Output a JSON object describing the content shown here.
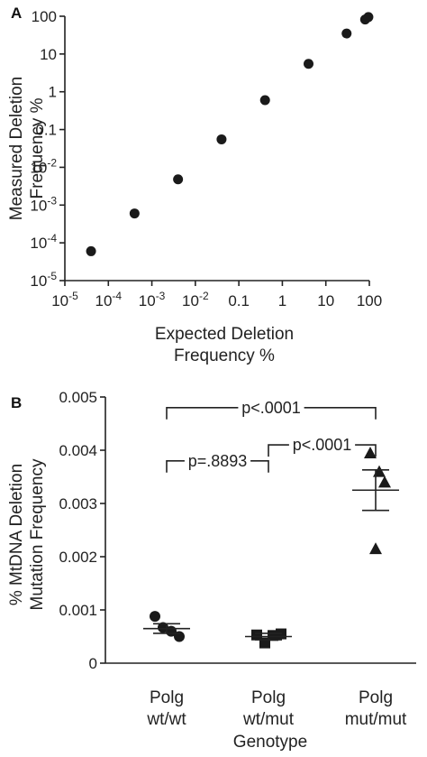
{
  "chart_data": [
    {
      "panel_label": "A",
      "type": "scatter",
      "xlabel": "Expected Deletion Frequency %",
      "ylabel": "Measured Deletion Frequency %",
      "xscale": "log",
      "yscale": "log",
      "xlim": [
        1e-05,
        100
      ],
      "ylim": [
        1e-05,
        100
      ],
      "x_ticks": [
        {
          "v": 1e-05,
          "base": "10",
          "exp": "-5"
        },
        {
          "v": 0.0001,
          "base": "10",
          "exp": "-4"
        },
        {
          "v": 0.001,
          "base": "10",
          "exp": "-3"
        },
        {
          "v": 0.01,
          "base": "10",
          "exp": "-2"
        },
        {
          "v": 0.1,
          "base": "0.1",
          "exp": ""
        },
        {
          "v": 1,
          "base": "1",
          "exp": ""
        },
        {
          "v": 10,
          "base": "10",
          "exp": ""
        },
        {
          "v": 100,
          "base": "100",
          "exp": ""
        }
      ],
      "y_ticks": [
        {
          "v": 1e-05,
          "base": "10",
          "exp": "-5"
        },
        {
          "v": 0.0001,
          "base": "10",
          "exp": "-4"
        },
        {
          "v": 0.001,
          "base": "10",
          "exp": "-3"
        },
        {
          "v": 0.01,
          "base": "10",
          "exp": "-2"
        },
        {
          "v": 0.1,
          "base": "0.1",
          "exp": ""
        },
        {
          "v": 1,
          "base": "1",
          "exp": ""
        },
        {
          "v": 10,
          "base": "10",
          "exp": ""
        },
        {
          "v": 100,
          "base": "100",
          "exp": ""
        }
      ],
      "points": [
        {
          "x": 4e-05,
          "y": 6e-05
        },
        {
          "x": 0.0004,
          "y": 0.0006
        },
        {
          "x": 0.004,
          "y": 0.0048
        },
        {
          "x": 0.04,
          "y": 0.055
        },
        {
          "x": 0.4,
          "y": 0.6
        },
        {
          "x": 4,
          "y": 5.5
        },
        {
          "x": 30,
          "y": 35
        },
        {
          "x": 80,
          "y": 82
        },
        {
          "x": 95,
          "y": 95
        }
      ]
    },
    {
      "panel_label": "B",
      "type": "scatter",
      "xlabel": "Genotype",
      "ylabel": "% MtDNA Deletion Mutation Frequency",
      "ylim": [
        0,
        0.005
      ],
      "y_ticks": [
        {
          "v": 0,
          "label": "0"
        },
        {
          "v": 0.001,
          "label": "0.001"
        },
        {
          "v": 0.002,
          "label": "0.002"
        },
        {
          "v": 0.003,
          "label": "0.003"
        },
        {
          "v": 0.004,
          "label": "0.004"
        },
        {
          "v": 0.005,
          "label": "0.005"
        }
      ],
      "groups": [
        {
          "line1": "Polg",
          "line2": "wt/wt",
          "marker": "circle",
          "values": [
            0.00088,
            0.00067,
            0.0006,
            0.0005
          ],
          "mean": 0.00065,
          "sem_low": 0.00056,
          "sem_high": 0.00074
        },
        {
          "line1": "Polg",
          "line2": "wt/mut",
          "marker": "square",
          "values": [
            0.00053,
            0.00038,
            0.00052,
            0.00055
          ],
          "mean": 0.0005,
          "sem_low": 0.00044,
          "sem_high": 0.00056
        },
        {
          "line1": "Polg",
          "line2": "mut/mut",
          "marker": "triangle",
          "values": [
            0.00395,
            0.0036,
            0.0034,
            0.00215
          ],
          "mean": 0.00325,
          "sem_low": 0.00287,
          "sem_high": 0.00363
        }
      ],
      "comparisons": [
        {
          "from": 0,
          "to": 2,
          "text": "p<.0001",
          "level": 0.0048
        },
        {
          "from": 1,
          "to": 2,
          "text": "p<.0001",
          "level": 0.0041
        },
        {
          "from": 0,
          "to": 1,
          "text": "p=.8893",
          "level": 0.0038
        }
      ]
    }
  ]
}
